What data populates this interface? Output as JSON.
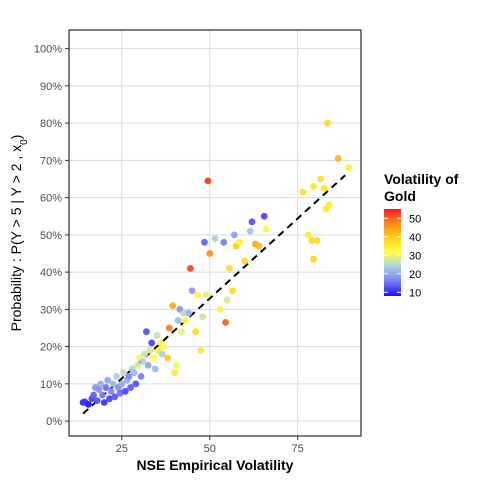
{
  "chart_data": {
    "type": "scatter",
    "title": "",
    "xlabel": "NSE Empirical Volatility",
    "ylabel": "Probability : P(Y > 5 | Y > 2 , x",
    "ylabel_sub": "0",
    "ylabel_close": ")",
    "xlim": [
      10,
      93
    ],
    "ylim": [
      -0.04,
      1.05
    ],
    "x_ticks": [
      25,
      50,
      75
    ],
    "x_tick_labels": [
      "25",
      "50",
      "75"
    ],
    "y_ticks": [
      0,
      0.1,
      0.2,
      0.3,
      0.4,
      0.5,
      0.6,
      0.7,
      0.8,
      0.9,
      1.0
    ],
    "y_tick_labels": [
      "0%",
      "10%",
      "20%",
      "30%",
      "40%",
      "50%",
      "60%",
      "70%",
      "80%",
      "90%",
      "100%"
    ],
    "grid": true,
    "reference_line": {
      "style": "dashed",
      "color": "#000000",
      "from": [
        14,
        0.02
      ],
      "to": [
        88.5,
        0.66
      ]
    },
    "legend": {
      "title_line1": "Volatility of",
      "title_line2": "Gold",
      "placement": "right",
      "ticks": [
        10,
        20,
        30,
        40,
        50
      ],
      "tick_labels": [
        "10",
        "20",
        "30",
        "40",
        "50"
      ],
      "range": [
        8,
        55
      ],
      "gradient": [
        "#1a0dff",
        "#7b7bf5",
        "#a9cfe6",
        "#ffff4d",
        "#ffd21a",
        "#ff8c1a",
        "#ff1a1a"
      ]
    },
    "points": [
      {
        "x": 14.0,
        "y": 0.05,
        "c": 10
      },
      {
        "x": 14.5,
        "y": 0.052,
        "c": 11
      },
      {
        "x": 15.5,
        "y": 0.045,
        "c": 9
      },
      {
        "x": 16.5,
        "y": 0.06,
        "c": 12
      },
      {
        "x": 17.0,
        "y": 0.07,
        "c": 14
      },
      {
        "x": 17.5,
        "y": 0.09,
        "c": 19
      },
      {
        "x": 18.0,
        "y": 0.055,
        "c": 13
      },
      {
        "x": 18.5,
        "y": 0.085,
        "c": 18
      },
      {
        "x": 19.0,
        "y": 0.1,
        "c": 21
      },
      {
        "x": 19.5,
        "y": 0.07,
        "c": 16
      },
      {
        "x": 20.0,
        "y": 0.05,
        "c": 11
      },
      {
        "x": 20.5,
        "y": 0.09,
        "c": 15
      },
      {
        "x": 21.0,
        "y": 0.11,
        "c": 20
      },
      {
        "x": 21.5,
        "y": 0.06,
        "c": 12
      },
      {
        "x": 22.0,
        "y": 0.08,
        "c": 17
      },
      {
        "x": 22.5,
        "y": 0.1,
        "c": 22
      },
      {
        "x": 23.0,
        "y": 0.065,
        "c": 13
      },
      {
        "x": 23.5,
        "y": 0.12,
        "c": 24
      },
      {
        "x": 24.0,
        "y": 0.09,
        "c": 18
      },
      {
        "x": 24.5,
        "y": 0.075,
        "c": 15
      },
      {
        "x": 25.0,
        "y": 0.1,
        "c": 20
      },
      {
        "x": 25.5,
        "y": 0.13,
        "c": 26
      },
      {
        "x": 26.0,
        "y": 0.08,
        "c": 12
      },
      {
        "x": 26.5,
        "y": 0.11,
        "c": 21
      },
      {
        "x": 27.0,
        "y": 0.12,
        "c": 17
      },
      {
        "x": 27.5,
        "y": 0.09,
        "c": 14
      },
      {
        "x": 28.0,
        "y": 0.14,
        "c": 25
      },
      {
        "x": 28.5,
        "y": 0.13,
        "c": 22
      },
      {
        "x": 29.0,
        "y": 0.1,
        "c": 13
      },
      {
        "x": 29.5,
        "y": 0.15,
        "c": 28
      },
      {
        "x": 30.0,
        "y": 0.17,
        "c": 30
      },
      {
        "x": 30.5,
        "y": 0.12,
        "c": 16
      },
      {
        "x": 31.0,
        "y": 0.16,
        "c": 24
      },
      {
        "x": 31.5,
        "y": 0.18,
        "c": 27
      },
      {
        "x": 32.0,
        "y": 0.24,
        "c": 13
      },
      {
        "x": 32.5,
        "y": 0.15,
        "c": 20
      },
      {
        "x": 33.0,
        "y": 0.19,
        "c": 28
      },
      {
        "x": 33.5,
        "y": 0.21,
        "c": 12
      },
      {
        "x": 34.0,
        "y": 0.17,
        "c": 32
      },
      {
        "x": 34.5,
        "y": 0.14,
        "c": 22
      },
      {
        "x": 35.0,
        "y": 0.23,
        "c": 26
      },
      {
        "x": 35.5,
        "y": 0.19,
        "c": 35
      },
      {
        "x": 36.0,
        "y": 0.21,
        "c": 30
      },
      {
        "x": 36.5,
        "y": 0.18,
        "c": 24
      },
      {
        "x": 37.0,
        "y": 0.2,
        "c": 32
      },
      {
        "x": 38.0,
        "y": 0.17,
        "c": 40
      },
      {
        "x": 38.5,
        "y": 0.25,
        "c": 48
      },
      {
        "x": 39.5,
        "y": 0.31,
        "c": 44
      },
      {
        "x": 40.0,
        "y": 0.13,
        "c": 36
      },
      {
        "x": 40.5,
        "y": 0.15,
        "c": 31
      },
      {
        "x": 41.0,
        "y": 0.27,
        "c": 22
      },
      {
        "x": 41.5,
        "y": 0.3,
        "c": 18
      },
      {
        "x": 42.0,
        "y": 0.24,
        "c": 29
      },
      {
        "x": 42.5,
        "y": 0.29,
        "c": 25
      },
      {
        "x": 43.0,
        "y": 0.27,
        "c": 33
      },
      {
        "x": 44.0,
        "y": 0.29,
        "c": 21
      },
      {
        "x": 44.5,
        "y": 0.41,
        "c": 52
      },
      {
        "x": 45.0,
        "y": 0.35,
        "c": 19
      },
      {
        "x": 46.0,
        "y": 0.24,
        "c": 38
      },
      {
        "x": 46.5,
        "y": 0.34,
        "c": 33
      },
      {
        "x": 47.5,
        "y": 0.19,
        "c": 36
      },
      {
        "x": 48.0,
        "y": 0.28,
        "c": 27
      },
      {
        "x": 48.5,
        "y": 0.48,
        "c": 14
      },
      {
        "x": 49.0,
        "y": 0.34,
        "c": 30
      },
      {
        "x": 49.5,
        "y": 0.645,
        "c": 53
      },
      {
        "x": 50.0,
        "y": 0.45,
        "c": 47
      },
      {
        "x": 51.5,
        "y": 0.49,
        "c": 24
      },
      {
        "x": 53.0,
        "y": 0.3,
        "c": 34
      },
      {
        "x": 54.0,
        "y": 0.48,
        "c": 16
      },
      {
        "x": 54.5,
        "y": 0.265,
        "c": 50
      },
      {
        "x": 55.0,
        "y": 0.325,
        "c": 28
      },
      {
        "x": 55.5,
        "y": 0.41,
        "c": 37
      },
      {
        "x": 56.5,
        "y": 0.35,
        "c": 38
      },
      {
        "x": 57.0,
        "y": 0.5,
        "c": 19
      },
      {
        "x": 57.5,
        "y": 0.47,
        "c": 40
      },
      {
        "x": 58.5,
        "y": 0.48,
        "c": 34
      },
      {
        "x": 60.0,
        "y": 0.43,
        "c": 38
      },
      {
        "x": 61.5,
        "y": 0.51,
        "c": 23
      },
      {
        "x": 62.0,
        "y": 0.535,
        "c": 13
      },
      {
        "x": 63.0,
        "y": 0.475,
        "c": 44
      },
      {
        "x": 64.0,
        "y": 0.47,
        "c": 42
      },
      {
        "x": 65.5,
        "y": 0.55,
        "c": 12
      },
      {
        "x": 66.0,
        "y": 0.515,
        "c": 33
      },
      {
        "x": 76.5,
        "y": 0.615,
        "c": 37
      },
      {
        "x": 78.0,
        "y": 0.5,
        "c": 35
      },
      {
        "x": 79.0,
        "y": 0.485,
        "c": 38
      },
      {
        "x": 79.5,
        "y": 0.63,
        "c": 36
      },
      {
        "x": 79.5,
        "y": 0.435,
        "c": 39
      },
      {
        "x": 80.5,
        "y": 0.485,
        "c": 37
      },
      {
        "x": 81.5,
        "y": 0.65,
        "c": 37
      },
      {
        "x": 82.5,
        "y": 0.625,
        "c": 36
      },
      {
        "x": 83.0,
        "y": 0.57,
        "c": 36
      },
      {
        "x": 83.5,
        "y": 0.8,
        "c": 38
      },
      {
        "x": 84.0,
        "y": 0.58,
        "c": 35
      },
      {
        "x": 86.5,
        "y": 0.705,
        "c": 43
      },
      {
        "x": 89.5,
        "y": 0.68,
        "c": 34
      }
    ]
  }
}
